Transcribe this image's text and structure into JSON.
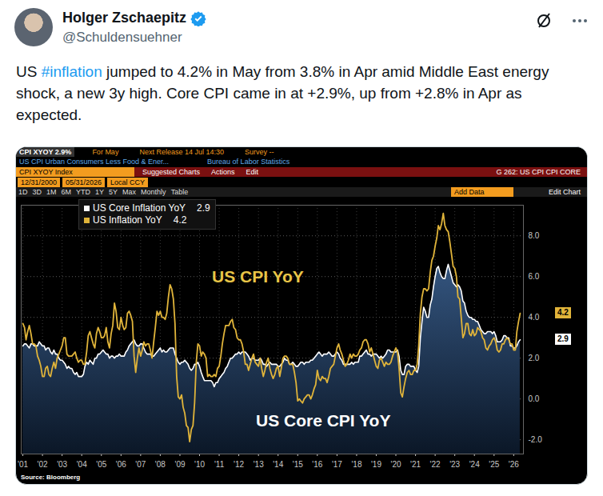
{
  "tweet": {
    "name": "Holger Zschaepitz",
    "handle": "@Schuldensuehner",
    "text": "US #inflation jumped to 4.2% in May from 3.8% in Apr amid Middle East energy shock, a new 3y high. Core CPI came in at +2.9%, up from +2.8% in Apr as expected."
  },
  "terminal_header": {
    "row1": [
      "CPI XYOY 2.9%",
      "For May",
      "Next Release 14 Jul 14:30",
      "Survey --"
    ],
    "row2": [
      "US CPI Urban Consumers Less Food & Ener...",
      "Bureau of Labor Statistics"
    ],
    "row3": [
      "CPI XYOY Index",
      "Suggested Charts",
      "Actions",
      "Edit",
      "G 262: US CPI CPI CORE"
    ],
    "row4": [
      "12/31/2000",
      "05/31/2026",
      "Local CCY"
    ],
    "row5": [
      "1D",
      "3D",
      "1M",
      "6M",
      "YTD",
      "1Y",
      "5Y",
      "Max",
      "Monthly",
      "Table",
      "Add Data",
      "Edit Chart"
    ]
  },
  "chart_data": {
    "type": "line",
    "annotations": [
      "US CPI YoY",
      "US Core CPI YoY"
    ],
    "source": "Source: Bloomberg",
    "legend": "top-left",
    "grid": true,
    "x": [
      "2001-01",
      "2001-02",
      "2001-03",
      "2001-04",
      "2001-05",
      "2001-06",
      "2001-07",
      "2001-08",
      "2001-09",
      "2001-10",
      "2001-11",
      "2001-12",
      "2002-01",
      "2002-02",
      "2002-03",
      "2002-04",
      "2002-05",
      "2002-06",
      "2002-07",
      "2002-08",
      "2002-09",
      "2002-10",
      "2002-11",
      "2002-12",
      "2003-01",
      "2003-02",
      "2003-03",
      "2003-04",
      "2003-05",
      "2003-06",
      "2003-07",
      "2003-08",
      "2003-09",
      "2003-10",
      "2003-11",
      "2003-12",
      "2004-01",
      "2004-02",
      "2004-03",
      "2004-04",
      "2004-05",
      "2004-06",
      "2004-07",
      "2004-08",
      "2004-09",
      "2004-10",
      "2004-11",
      "2004-12",
      "2005-01",
      "2005-02",
      "2005-03",
      "2005-04",
      "2005-05",
      "2005-06",
      "2005-07",
      "2005-08",
      "2005-09",
      "2005-10",
      "2005-11",
      "2005-12",
      "2006-01",
      "2006-02",
      "2006-03",
      "2006-04",
      "2006-05",
      "2006-06",
      "2006-07",
      "2006-08",
      "2006-09",
      "2006-10",
      "2006-11",
      "2006-12",
      "2007-01",
      "2007-02",
      "2007-03",
      "2007-04",
      "2007-05",
      "2007-06",
      "2007-07",
      "2007-08",
      "2007-09",
      "2007-10",
      "2007-11",
      "2007-12",
      "2008-01",
      "2008-02",
      "2008-03",
      "2008-04",
      "2008-05",
      "2008-06",
      "2008-07",
      "2008-08",
      "2008-09",
      "2008-10",
      "2008-11",
      "2008-12",
      "2009-01",
      "2009-02",
      "2009-03",
      "2009-04",
      "2009-05",
      "2009-06",
      "2009-07",
      "2009-08",
      "2009-09",
      "2009-10",
      "2009-11",
      "2009-12",
      "2010-01",
      "2010-02",
      "2010-03",
      "2010-04",
      "2010-05",
      "2010-06",
      "2010-07",
      "2010-08",
      "2010-09",
      "2010-10",
      "2010-11",
      "2010-12",
      "2011-01",
      "2011-02",
      "2011-03",
      "2011-04",
      "2011-05",
      "2011-06",
      "2011-07",
      "2011-08",
      "2011-09",
      "2011-10",
      "2011-11",
      "2011-12",
      "2012-01",
      "2012-02",
      "2012-03",
      "2012-04",
      "2012-05",
      "2012-06",
      "2012-07",
      "2012-08",
      "2012-09",
      "2012-10",
      "2012-11",
      "2012-12",
      "2013-01",
      "2013-02",
      "2013-03",
      "2013-04",
      "2013-05",
      "2013-06",
      "2013-07",
      "2013-08",
      "2013-09",
      "2013-10",
      "2013-11",
      "2013-12",
      "2014-01",
      "2014-02",
      "2014-03",
      "2014-04",
      "2014-05",
      "2014-06",
      "2014-07",
      "2014-08",
      "2014-09",
      "2014-10",
      "2014-11",
      "2014-12",
      "2015-01",
      "2015-02",
      "2015-03",
      "2015-04",
      "2015-05",
      "2015-06",
      "2015-07",
      "2015-08",
      "2015-09",
      "2015-10",
      "2015-11",
      "2015-12",
      "2016-01",
      "2016-02",
      "2016-03",
      "2016-04",
      "2016-05",
      "2016-06",
      "2016-07",
      "2016-08",
      "2016-09",
      "2016-10",
      "2016-11",
      "2016-12",
      "2017-01",
      "2017-02",
      "2017-03",
      "2017-04",
      "2017-05",
      "2017-06",
      "2017-07",
      "2017-08",
      "2017-09",
      "2017-10",
      "2017-11",
      "2017-12",
      "2018-01",
      "2018-02",
      "2018-03",
      "2018-04",
      "2018-05",
      "2018-06",
      "2018-07",
      "2018-08",
      "2018-09",
      "2018-10",
      "2018-11",
      "2018-12",
      "2019-01",
      "2019-02",
      "2019-03",
      "2019-04",
      "2019-05",
      "2019-06",
      "2019-07",
      "2019-08",
      "2019-09",
      "2019-10",
      "2019-11",
      "2019-12",
      "2020-01",
      "2020-02",
      "2020-03",
      "2020-04",
      "2020-05",
      "2020-06",
      "2020-07",
      "2020-08",
      "2020-09",
      "2020-10",
      "2020-11",
      "2020-12",
      "2021-01",
      "2021-02",
      "2021-03",
      "2021-04",
      "2021-05",
      "2021-06",
      "2021-07",
      "2021-08",
      "2021-09",
      "2021-10",
      "2021-11",
      "2021-12",
      "2022-01",
      "2022-02",
      "2022-03",
      "2022-04",
      "2022-05",
      "2022-06",
      "2022-07",
      "2022-08",
      "2022-09",
      "2022-10",
      "2022-11",
      "2022-12",
      "2023-01",
      "2023-02",
      "2023-03",
      "2023-04",
      "2023-05",
      "2023-06",
      "2023-07",
      "2023-08",
      "2023-09",
      "2023-10",
      "2023-11",
      "2023-12",
      "2024-01",
      "2024-02",
      "2024-03",
      "2024-04",
      "2024-05",
      "2024-06",
      "2024-07",
      "2024-08",
      "2024-09",
      "2024-10",
      "2024-11",
      "2024-12",
      "2025-01",
      "2025-02",
      "2025-03",
      "2025-04",
      "2025-05",
      "2025-06",
      "2025-07",
      "2025-08",
      "2025-09",
      "2025-10",
      "2025-11",
      "2025-12",
      "2026-01",
      "2026-02",
      "2026-03",
      "2026-04",
      "2026-05"
    ],
    "series": [
      {
        "name": "US Core Inflation YoY",
        "type": "area",
        "color": "#ffffff",
        "values": [
          2.6,
          2.7,
          2.7,
          2.6,
          2.5,
          2.7,
          2.7,
          2.6,
          2.6,
          2.6,
          2.8,
          2.7,
          2.6,
          2.6,
          2.4,
          2.5,
          2.5,
          2.3,
          2.2,
          2.4,
          2.2,
          2.2,
          2.0,
          1.9,
          1.9,
          1.8,
          1.7,
          1.5,
          1.6,
          1.5,
          1.5,
          1.3,
          1.2,
          1.3,
          1.1,
          1.1,
          1.1,
          1.2,
          1.6,
          1.8,
          1.7,
          1.9,
          1.8,
          1.7,
          2.0,
          2.0,
          2.2,
          2.2,
          2.3,
          2.4,
          2.3,
          2.2,
          2.2,
          2.0,
          2.1,
          2.1,
          2.0,
          2.1,
          2.1,
          2.2,
          2.1,
          2.1,
          2.1,
          2.3,
          2.4,
          2.6,
          2.7,
          2.8,
          2.9,
          2.7,
          2.6,
          2.6,
          2.7,
          2.7,
          2.5,
          2.3,
          2.2,
          2.2,
          2.2,
          2.1,
          2.1,
          2.2,
          2.3,
          2.4,
          2.5,
          2.3,
          2.4,
          2.3,
          2.3,
          2.4,
          2.5,
          2.5,
          2.5,
          2.2,
          2.0,
          1.8,
          1.7,
          1.8,
          1.8,
          1.9,
          1.8,
          1.7,
          1.5,
          1.4,
          1.5,
          1.7,
          1.7,
          1.8,
          1.6,
          1.3,
          1.1,
          0.9,
          0.9,
          0.9,
          0.9,
          0.9,
          0.8,
          0.6,
          0.8,
          0.8,
          1.0,
          1.1,
          1.2,
          1.3,
          1.5,
          1.6,
          1.8,
          2.0,
          2.0,
          2.1,
          2.2,
          2.2,
          2.3,
          2.2,
          2.3,
          2.3,
          2.3,
          2.2,
          2.1,
          1.9,
          2.0,
          2.0,
          1.9,
          1.9,
          1.9,
          2.0,
          1.9,
          1.7,
          1.7,
          1.6,
          1.7,
          1.8,
          1.7,
          1.7,
          1.7,
          1.7,
          1.6,
          1.6,
          1.7,
          1.8,
          2.0,
          1.9,
          1.9,
          1.7,
          1.7,
          1.8,
          1.7,
          1.6,
          1.6,
          1.7,
          1.8,
          1.8,
          1.7,
          1.8,
          1.8,
          1.8,
          1.9,
          1.9,
          2.0,
          2.1,
          2.2,
          2.3,
          2.2,
          2.1,
          2.2,
          2.2,
          2.2,
          2.3,
          2.2,
          2.1,
          2.1,
          2.2,
          2.3,
          2.2,
          2.0,
          1.9,
          1.7,
          1.7,
          1.7,
          1.7,
          1.7,
          1.8,
          1.7,
          1.8,
          1.8,
          1.8,
          2.1,
          2.1,
          2.2,
          2.3,
          2.4,
          2.2,
          2.2,
          2.1,
          2.2,
          2.2,
          2.2,
          2.1,
          2.0,
          2.1,
          2.0,
          2.1,
          2.2,
          2.4,
          2.4,
          2.3,
          2.3,
          2.3,
          2.3,
          2.4,
          2.1,
          1.4,
          1.2,
          1.2,
          1.6,
          1.7,
          1.7,
          1.6,
          1.6,
          1.6,
          1.4,
          1.3,
          1.6,
          3.0,
          3.8,
          4.5,
          4.3,
          4.0,
          4.0,
          4.6,
          4.9,
          5.5,
          6.0,
          6.4,
          6.5,
          6.2,
          6.0,
          5.9,
          5.9,
          6.3,
          6.6,
          6.3,
          6.0,
          5.7,
          5.6,
          5.5,
          5.6,
          5.5,
          5.3,
          4.8,
          4.7,
          4.3,
          4.1,
          4.0,
          4.0,
          3.9,
          3.9,
          3.8,
          3.8,
          3.6,
          3.4,
          3.3,
          3.2,
          3.2,
          3.3,
          3.3,
          3.3,
          3.2,
          3.3,
          3.1,
          2.8,
          2.8,
          2.8,
          2.9,
          3.1,
          3.1,
          3.0,
          3.0,
          2.6,
          2.6,
          2.5,
          2.5,
          2.6,
          2.8,
          2.9
        ]
      },
      {
        "name": "US Inflation YoY",
        "type": "line",
        "color": "#e0b43a",
        "values": [
          3.7,
          3.5,
          2.9,
          3.3,
          3.6,
          3.2,
          2.7,
          2.7,
          2.6,
          2.1,
          1.9,
          1.6,
          1.1,
          1.1,
          1.5,
          1.6,
          1.2,
          1.1,
          1.5,
          1.8,
          1.5,
          2.0,
          2.2,
          2.4,
          2.6,
          3.0,
          3.0,
          2.2,
          2.1,
          2.1,
          2.1,
          2.2,
          2.3,
          2.0,
          1.8,
          1.9,
          1.9,
          1.7,
          1.7,
          2.3,
          3.1,
          3.3,
          3.0,
          2.7,
          2.5,
          3.2,
          3.5,
          3.3,
          3.0,
          3.0,
          3.1,
          3.5,
          2.8,
          2.5,
          3.2,
          3.6,
          4.7,
          4.3,
          3.5,
          3.4,
          4.0,
          3.6,
          3.4,
          3.5,
          4.2,
          4.3,
          4.1,
          3.8,
          2.1,
          1.3,
          2.0,
          2.5,
          2.1,
          2.4,
          2.8,
          2.6,
          2.7,
          2.7,
          2.4,
          2.0,
          2.8,
          3.5,
          4.3,
          4.1,
          4.3,
          4.0,
          4.0,
          3.9,
          4.2,
          5.0,
          5.6,
          5.4,
          4.9,
          3.7,
          1.1,
          0.1,
          0.0,
          0.2,
          -0.4,
          -0.7,
          -1.3,
          -1.4,
          -2.1,
          -1.5,
          -1.3,
          -0.2,
          1.8,
          2.7,
          2.6,
          2.1,
          2.3,
          2.2,
          2.0,
          1.1,
          1.2,
          1.1,
          1.1,
          1.2,
          1.1,
          1.5,
          1.6,
          2.1,
          2.7,
          3.2,
          3.6,
          3.6,
          3.6,
          3.8,
          3.9,
          3.5,
          3.4,
          3.0,
          2.9,
          2.9,
          2.7,
          2.3,
          1.7,
          1.7,
          1.4,
          1.7,
          2.0,
          2.2,
          1.8,
          1.7,
          1.6,
          2.0,
          1.5,
          1.1,
          1.4,
          1.8,
          2.0,
          1.5,
          1.2,
          1.0,
          1.2,
          1.5,
          1.6,
          1.1,
          1.5,
          2.0,
          2.1,
          2.1,
          2.0,
          1.7,
          1.7,
          1.7,
          1.3,
          0.8,
          -0.1,
          0.0,
          -0.1,
          -0.2,
          0.0,
          0.1,
          0.2,
          0.2,
          0.0,
          0.2,
          0.5,
          0.7,
          1.4,
          1.0,
          0.9,
          1.1,
          1.0,
          1.0,
          0.8,
          1.1,
          1.5,
          1.6,
          1.7,
          2.1,
          2.5,
          2.7,
          2.4,
          2.2,
          1.9,
          1.6,
          1.7,
          1.9,
          2.2,
          2.0,
          2.2,
          2.1,
          2.1,
          2.2,
          2.4,
          2.5,
          2.8,
          2.9,
          2.9,
          2.7,
          2.3,
          2.5,
          2.2,
          1.9,
          1.6,
          1.5,
          1.9,
          2.0,
          1.8,
          1.6,
          1.8,
          1.7,
          1.7,
          1.8,
          2.1,
          2.3,
          2.5,
          2.3,
          1.5,
          0.3,
          0.1,
          0.6,
          1.0,
          1.3,
          1.4,
          1.2,
          1.2,
          1.4,
          1.4,
          1.7,
          2.6,
          4.2,
          5.0,
          5.4,
          5.4,
          5.3,
          5.4,
          6.2,
          6.8,
          7.0,
          7.5,
          7.9,
          8.5,
          8.3,
          8.6,
          9.1,
          8.5,
          8.3,
          8.2,
          7.7,
          7.1,
          6.5,
          6.4,
          6.0,
          5.0,
          4.9,
          4.0,
          3.0,
          3.2,
          3.7,
          3.7,
          3.2,
          3.1,
          3.4,
          3.1,
          3.2,
          3.5,
          3.4,
          3.3,
          3.0,
          2.9,
          2.5,
          2.4,
          2.6,
          2.7,
          2.9,
          3.0,
          2.8,
          2.4,
          2.3,
          2.4,
          2.7,
          2.7,
          2.9,
          3.0,
          2.9,
          2.7,
          2.7,
          2.4,
          2.4,
          3.3,
          3.8,
          4.2
        ]
      }
    ],
    "xlim": [
      "2000-12",
      "2026-07"
    ],
    "xticks": [
      {
        "value": "2001-01",
        "label": "'01"
      },
      {
        "value": "2002-01",
        "label": "'02"
      },
      {
        "value": "2003-01",
        "label": "'03"
      },
      {
        "value": "2004-01",
        "label": "'04"
      },
      {
        "value": "2005-01",
        "label": "'05"
      },
      {
        "value": "2006-01",
        "label": "'06"
      },
      {
        "value": "2007-01",
        "label": "'07"
      },
      {
        "value": "2008-01",
        "label": "'08"
      },
      {
        "value": "2009-01",
        "label": "'09"
      },
      {
        "value": "2010-01",
        "label": "'10"
      },
      {
        "value": "2011-01",
        "label": "'11"
      },
      {
        "value": "2012-01",
        "label": "'12"
      },
      {
        "value": "2013-01",
        "label": "'13"
      },
      {
        "value": "2014-01",
        "label": "'14"
      },
      {
        "value": "2015-01",
        "label": "'15"
      },
      {
        "value": "2016-01",
        "label": "'16"
      },
      {
        "value": "2017-01",
        "label": "'17"
      },
      {
        "value": "2018-01",
        "label": "'18"
      },
      {
        "value": "2019-01",
        "label": "'19"
      },
      {
        "value": "2020-01",
        "label": "'20"
      },
      {
        "value": "2021-01",
        "label": "'21"
      },
      {
        "value": "2022-01",
        "label": "'22"
      },
      {
        "value": "2023-01",
        "label": "'23"
      },
      {
        "value": "2024-01",
        "label": "'24"
      },
      {
        "value": "2025-01",
        "label": "'25"
      },
      {
        "value": "2026-01",
        "label": "'26"
      }
    ],
    "ylim": [
      -2.7,
      9.5
    ],
    "yticks": [
      {
        "value": -2,
        "label": "-2.0"
      },
      {
        "value": 0,
        "label": "0.0"
      },
      {
        "value": 2,
        "label": "2.0"
      },
      {
        "value": 4,
        "label": "4.0"
      },
      {
        "value": 6,
        "label": "6.0"
      },
      {
        "value": 8,
        "label": "8.0"
      }
    ]
  }
}
